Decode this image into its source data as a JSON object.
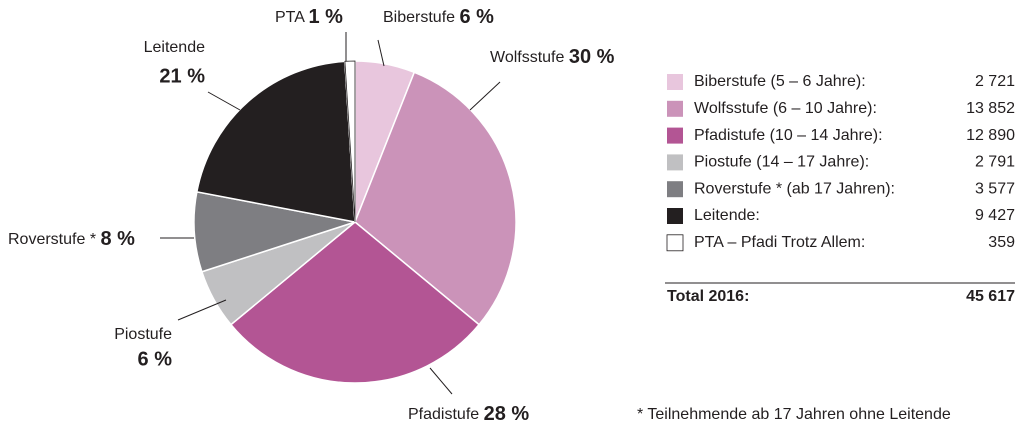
{
  "chart_data": {
    "type": "pie",
    "categories": [
      "Biberstufe",
      "Wolfsstufe",
      "Pfadistufe",
      "Piostufe",
      "Roverstufe *",
      "Leitende",
      "PTA"
    ],
    "values": [
      6,
      30,
      28,
      6,
      8,
      21,
      1
    ],
    "value_labels": [
      "6 %",
      "30 %",
      "28 %",
      "6 %",
      "8 %",
      "21 %",
      "1 %"
    ],
    "colors": [
      "#e8c6dd",
      "#cb93b9",
      "#b35594",
      "#c0c0c2",
      "#7e7e82",
      "#231f20",
      "#ffffff"
    ],
    "legend_table": {
      "rows": [
        [
          "Biberstufe (5 – 6 Jahre):",
          "2 721"
        ],
        [
          "Wolfsstufe (6 – 10 Jahre):",
          "13 852"
        ],
        [
          "Pfadistufe (10 – 14 Jahre):",
          "12 890"
        ],
        [
          "Piostufe (14 – 17 Jahre):",
          "2 791"
        ],
        [
          "Roverstufe * (ab 17 Jahren):",
          "3 577"
        ],
        [
          "Leitende:",
          "9 427"
        ],
        [
          "PTA – Pfadi Trotz Allem:",
          "359"
        ]
      ],
      "total": [
        "Total 2016:",
        "45 617"
      ]
    },
    "footnote": "* Teilnehmende ab 17 Jahren ohne Leitende"
  }
}
